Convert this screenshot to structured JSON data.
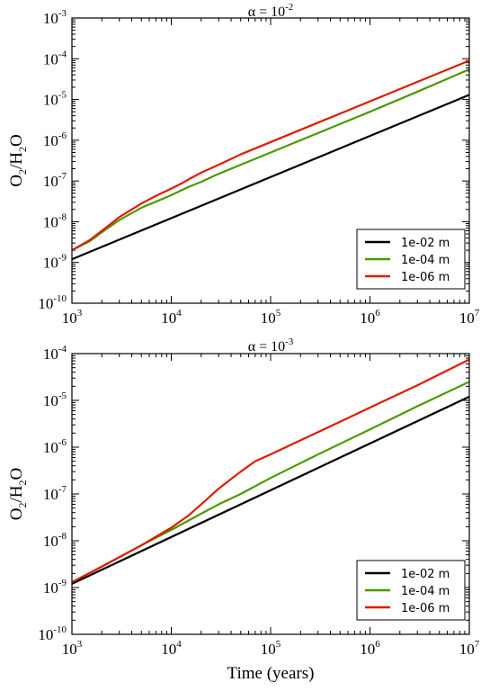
{
  "colors": {
    "1e-02 m": "#000000",
    "1e-04 m": "#4d9900",
    "1e-06 m": "#dd1c00"
  },
  "chart_data": [
    {
      "type": "line",
      "title": {
        "prefix": "α = 10",
        "exponent": "-2"
      },
      "ylabel": {
        "a": "O",
        "a_sub": "2",
        "b": "/H",
        "b_sub": "2",
        "c": "O"
      },
      "xlabel": "",
      "x_scale": "log",
      "y_scale": "log",
      "xlim": [
        1000,
        10000000
      ],
      "ylim": [
        1e-10,
        0.001
      ],
      "x_ticks": [
        {
          "value": 1000,
          "base": "10",
          "exp": "3"
        },
        {
          "value": 10000,
          "base": "10",
          "exp": "4"
        },
        {
          "value": 100000,
          "base": "10",
          "exp": "5"
        },
        {
          "value": 1000000,
          "base": "10",
          "exp": "6"
        },
        {
          "value": 10000000,
          "base": "10",
          "exp": "7"
        }
      ],
      "y_ticks": [
        {
          "value": 1e-10,
          "base": "10",
          "exp": "-10"
        },
        {
          "value": 1e-09,
          "base": "10",
          "exp": "-9"
        },
        {
          "value": 1e-08,
          "base": "10",
          "exp": "-8"
        },
        {
          "value": 1e-07,
          "base": "10",
          "exp": "-7"
        },
        {
          "value": 1e-06,
          "base": "10",
          "exp": "-6"
        },
        {
          "value": 1e-05,
          "base": "10",
          "exp": "-5"
        },
        {
          "value": 0.0001,
          "base": "10",
          "exp": "-4"
        },
        {
          "value": 0.001,
          "base": "10",
          "exp": "-3"
        }
      ],
      "legend": "lower right",
      "grid": false,
      "series": [
        {
          "name": "1e-02 m",
          "x": [
            1000,
            10000000
          ],
          "y": [
            1.2e-09,
            1.3e-05
          ]
        },
        {
          "name": "1e-04 m",
          "x": [
            1000,
            1500,
            2000,
            3000,
            5000,
            7000,
            10000,
            15000,
            20000,
            30000,
            50000,
            100000,
            300000,
            1000000,
            3000000,
            10000000
          ],
          "y": [
            2e-09,
            3.3e-09,
            5.5e-09,
            1.1e-08,
            2.2e-08,
            3.1e-08,
            4.5e-08,
            7.2e-08,
            9.5e-08,
            1.5e-07,
            2.5e-07,
            5e-07,
            1.5e-06,
            5e-06,
            1.55e-05,
            5.5e-05
          ]
        },
        {
          "name": "1e-06 m",
          "x": [
            1000,
            1500,
            2000,
            3000,
            5000,
            7000,
            10000,
            13000,
            15000,
            20000,
            30000,
            50000,
            100000,
            300000,
            1000000,
            3000000,
            10000000
          ],
          "y": [
            2e-09,
            3.5e-09,
            6e-09,
            1.3e-08,
            2.8e-08,
            4.3e-08,
            6.5e-08,
            9e-08,
            1.1e-07,
            1.6e-07,
            2.5e-07,
            4.5e-07,
            9e-07,
            2.7e-06,
            9e-06,
            2.7e-05,
            9e-05
          ]
        }
      ]
    },
    {
      "type": "line",
      "title": {
        "prefix": "α = 10",
        "exponent": "-3"
      },
      "ylabel": {
        "a": "O",
        "a_sub": "2",
        "b": "/H",
        "b_sub": "2",
        "c": "O"
      },
      "xlabel": "Time (years)",
      "x_scale": "log",
      "y_scale": "log",
      "xlim": [
        1000,
        10000000
      ],
      "ylim": [
        1e-10,
        0.0001
      ],
      "x_ticks": [
        {
          "value": 1000,
          "base": "10",
          "exp": "3"
        },
        {
          "value": 10000,
          "base": "10",
          "exp": "4"
        },
        {
          "value": 100000,
          "base": "10",
          "exp": "5"
        },
        {
          "value": 1000000,
          "base": "10",
          "exp": "6"
        },
        {
          "value": 10000000,
          "base": "10",
          "exp": "7"
        }
      ],
      "y_ticks": [
        {
          "value": 1e-10,
          "base": "10",
          "exp": "-10"
        },
        {
          "value": 1e-09,
          "base": "10",
          "exp": "-9"
        },
        {
          "value": 1e-08,
          "base": "10",
          "exp": "-8"
        },
        {
          "value": 1e-07,
          "base": "10",
          "exp": "-7"
        },
        {
          "value": 1e-06,
          "base": "10",
          "exp": "-6"
        },
        {
          "value": 1e-05,
          "base": "10",
          "exp": "-5"
        },
        {
          "value": 0.0001,
          "base": "10",
          "exp": "-4"
        }
      ],
      "legend": "lower right",
      "grid": false,
      "series": [
        {
          "name": "1e-02 m",
          "x": [
            1000,
            10000000
          ],
          "y": [
            1.2e-09,
            1.2e-05
          ]
        },
        {
          "name": "1e-04 m",
          "x": [
            1000,
            2000,
            5000,
            10000,
            20000,
            30000,
            50000,
            100000,
            300000,
            1000000,
            3000000,
            10000000
          ],
          "y": [
            1.3e-09,
            2.8e-09,
            8e-09,
            1.7e-08,
            3.8e-08,
            6e-08,
            1e-07,
            2.2e-07,
            7e-07,
            2.4e-06,
            7.5e-06,
            2.5e-05
          ]
        },
        {
          "name": "1e-06 m",
          "x": [
            1000,
            2000,
            5000,
            10000,
            15000,
            20000,
            30000,
            50000,
            70000,
            100000,
            200000,
            500000,
            1000000,
            3000000,
            10000000
          ],
          "y": [
            1.3e-09,
            2.8e-09,
            8e-09,
            1.9e-08,
            3.5e-08,
            6e-08,
            1.3e-07,
            3e-07,
            5e-07,
            7e-07,
            1.4e-06,
            3.5e-06,
            7e-06,
            2.1e-05,
            7.5e-05
          ]
        }
      ]
    }
  ]
}
